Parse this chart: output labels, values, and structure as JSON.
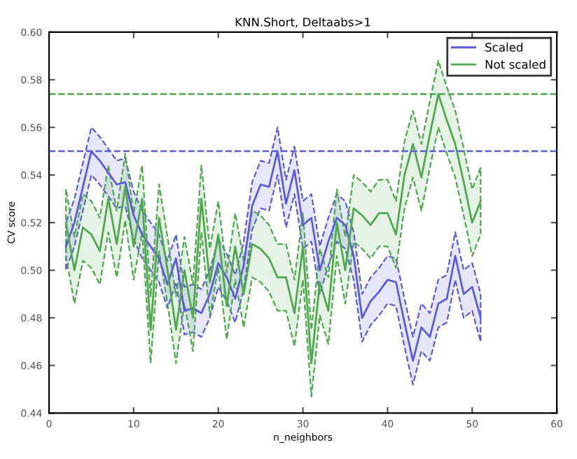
{
  "chart_data": {
    "type": "line",
    "title": "KNN.Short, Deltaabs>1",
    "xlabel": "n_neighbors",
    "ylabel": "CV score",
    "x": [
      2,
      3,
      4,
      5,
      6,
      7,
      8,
      9,
      10,
      11,
      12,
      13,
      14,
      15,
      16,
      17,
      18,
      19,
      20,
      21,
      22,
      23,
      24,
      25,
      26,
      27,
      28,
      29,
      30,
      31,
      32,
      33,
      34,
      35,
      36,
      37,
      38,
      39,
      40,
      41,
      42,
      43,
      44,
      45,
      46,
      47,
      48,
      49,
      50,
      51
    ],
    "series": [
      {
        "name": "Scaled",
        "color": "#5b5bdc",
        "values": [
          0.51,
          0.52,
          0.535,
          0.55,
          0.546,
          0.541,
          0.536,
          0.537,
          0.523,
          0.515,
          0.51,
          0.505,
          0.494,
          0.505,
          0.483,
          0.484,
          0.482,
          0.49,
          0.503,
          0.497,
          0.488,
          0.502,
          0.527,
          0.536,
          0.535,
          0.55,
          0.528,
          0.542,
          0.519,
          0.522,
          0.5,
          0.512,
          0.522,
          0.519,
          0.506,
          0.48,
          0.487,
          0.491,
          0.496,
          0.495,
          0.478,
          0.462,
          0.476,
          0.472,
          0.486,
          0.488,
          0.506,
          0.49,
          0.493,
          0.48
        ],
        "lower": [
          0.5,
          0.51,
          0.525,
          0.54,
          0.536,
          0.531,
          0.526,
          0.527,
          0.513,
          0.505,
          0.5,
          0.495,
          0.484,
          0.495,
          0.473,
          0.474,
          0.472,
          0.48,
          0.493,
          0.487,
          0.478,
          0.492,
          0.517,
          0.526,
          0.525,
          0.54,
          0.518,
          0.532,
          0.509,
          0.512,
          0.49,
          0.502,
          0.512,
          0.509,
          0.496,
          0.47,
          0.477,
          0.481,
          0.486,
          0.485,
          0.468,
          0.452,
          0.466,
          0.462,
          0.476,
          0.478,
          0.496,
          0.48,
          0.483,
          0.47
        ],
        "upper": [
          0.52,
          0.53,
          0.545,
          0.56,
          0.556,
          0.551,
          0.546,
          0.547,
          0.533,
          0.525,
          0.52,
          0.515,
          0.504,
          0.515,
          0.493,
          0.494,
          0.492,
          0.5,
          0.513,
          0.507,
          0.498,
          0.512,
          0.537,
          0.546,
          0.545,
          0.56,
          0.538,
          0.552,
          0.529,
          0.532,
          0.51,
          0.522,
          0.532,
          0.529,
          0.516,
          0.49,
          0.497,
          0.501,
          0.506,
          0.505,
          0.488,
          0.472,
          0.486,
          0.482,
          0.496,
          0.498,
          0.516,
          0.5,
          0.503,
          0.49
        ]
      },
      {
        "name": "Not scaled",
        "color": "#4ea84e",
        "values": [
          0.52,
          0.5,
          0.518,
          0.515,
          0.508,
          0.53,
          0.511,
          0.535,
          0.51,
          0.53,
          0.475,
          0.522,
          0.5,
          0.475,
          0.5,
          0.48,
          0.53,
          0.495,
          0.515,
          0.485,
          0.51,
          0.49,
          0.511,
          0.509,
          0.505,
          0.497,
          0.497,
          0.482,
          0.51,
          0.461,
          0.495,
          0.483,
          0.52,
          0.5,
          0.526,
          0.523,
          0.519,
          0.524,
          0.524,
          0.515,
          0.54,
          0.553,
          0.539,
          0.557,
          0.574,
          0.563,
          0.553,
          0.537,
          0.52,
          0.529
        ],
        "lower": [
          0.506,
          0.486,
          0.504,
          0.501,
          0.494,
          0.516,
          0.497,
          0.521,
          0.496,
          0.516,
          0.461,
          0.508,
          0.486,
          0.461,
          0.486,
          0.466,
          0.516,
          0.481,
          0.501,
          0.471,
          0.496,
          0.476,
          0.497,
          0.495,
          0.491,
          0.483,
          0.483,
          0.468,
          0.496,
          0.447,
          0.481,
          0.469,
          0.506,
          0.486,
          0.512,
          0.509,
          0.505,
          0.51,
          0.51,
          0.501,
          0.526,
          0.539,
          0.525,
          0.543,
          0.56,
          0.549,
          0.539,
          0.523,
          0.506,
          0.515
        ],
        "upper": [
          0.534,
          0.514,
          0.532,
          0.529,
          0.522,
          0.544,
          0.525,
          0.549,
          0.524,
          0.544,
          0.489,
          0.536,
          0.514,
          0.489,
          0.514,
          0.494,
          0.544,
          0.509,
          0.529,
          0.499,
          0.524,
          0.504,
          0.525,
          0.523,
          0.519,
          0.511,
          0.511,
          0.496,
          0.524,
          0.475,
          0.509,
          0.497,
          0.534,
          0.514,
          0.54,
          0.537,
          0.533,
          0.538,
          0.538,
          0.529,
          0.554,
          0.567,
          0.553,
          0.571,
          0.588,
          0.577,
          0.567,
          0.551,
          0.534,
          0.543
        ]
      }
    ],
    "ref_lines": [
      {
        "axis": "y",
        "value": 0.55,
        "color": "#5b5bdc",
        "line_style": "dashed"
      },
      {
        "axis": "y",
        "value": 0.574,
        "color": "#4ea84e",
        "line_style": "dashed"
      }
    ],
    "xlim": [
      0,
      60
    ],
    "ylim": [
      0.44,
      0.6
    ],
    "xticks": [
      0,
      10,
      20,
      30,
      40,
      50,
      60
    ],
    "yticks": [
      0.44,
      0.46,
      0.48,
      {
        "value": 0.5,
        "label": "0.50"
      },
      0.52,
      0.54,
      0.56,
      0.58,
      {
        "value": 0.6,
        "label": "0.60"
      }
    ],
    "legend": "top right",
    "line_style": "solid",
    "marker": "none"
  }
}
